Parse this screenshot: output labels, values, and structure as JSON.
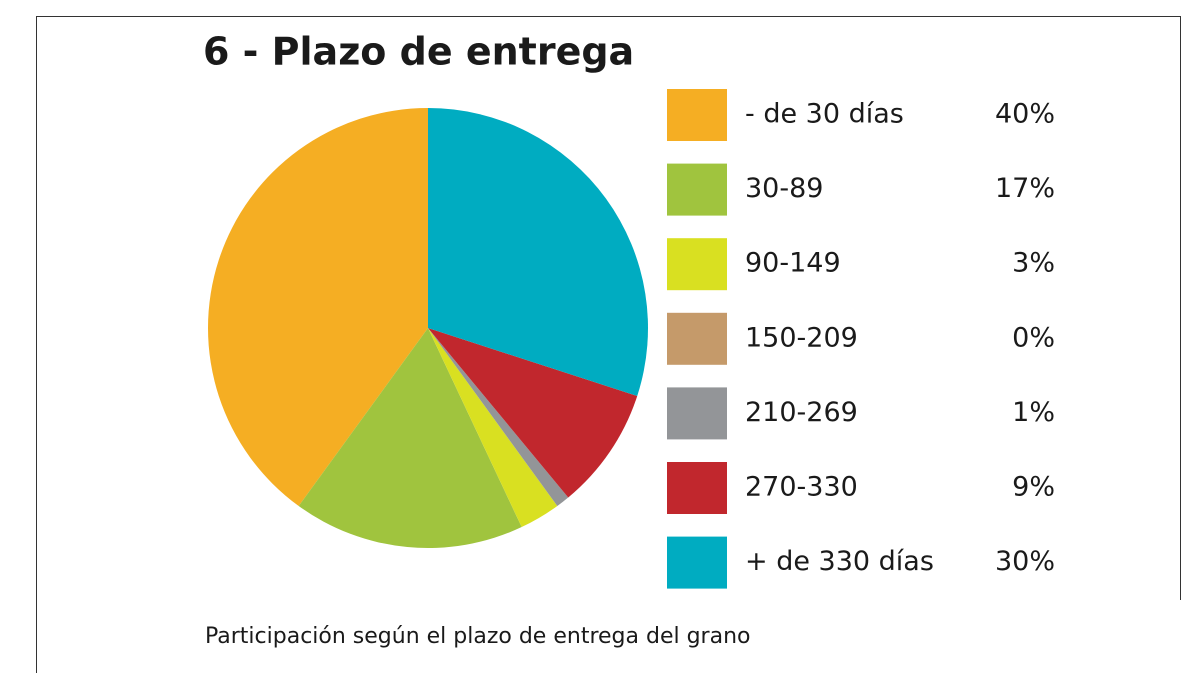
{
  "chart_data": {
    "type": "pie",
    "title": "6 - Plazo de entrega",
    "caption": "Participación según el plazo de entrega del grano",
    "categories": [
      "- de 30 días",
      "30-89",
      "90-149",
      "150-209",
      "210-269",
      "270-330",
      "+ de 330 días"
    ],
    "values": [
      40,
      17,
      3,
      0,
      1,
      9,
      30
    ],
    "value_labels": [
      "40%",
      "17%",
      "3%",
      "0%",
      "1%",
      "9%",
      "30%"
    ],
    "colors": [
      "#f5ae23",
      "#a0c43e",
      "#d9e021",
      "#c59a6a",
      "#939598",
      "#c1272d",
      "#00acc1"
    ],
    "direction": "counterclockwise",
    "start": "top",
    "legend": "right"
  }
}
